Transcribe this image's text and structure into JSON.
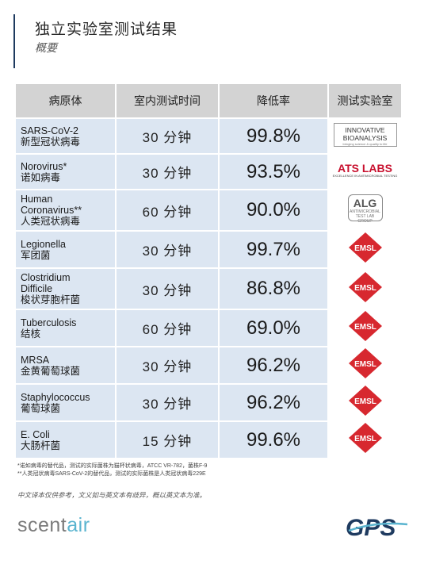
{
  "header": {
    "title": "独立实验室测试结果",
    "subtitle": "概要"
  },
  "table": {
    "headers": [
      "病原体",
      "室内测试时间",
      "降低率",
      "测试实验室"
    ],
    "rows": [
      {
        "pathogen": "SARS-CoV-2\n新型冠状病毒",
        "time": "30 分钟",
        "rate": "99.8%",
        "lab_logo": "innovative-bioanalysis-logo"
      },
      {
        "pathogen": "Norovirus*\n诺如病毒",
        "time": "30 分钟",
        "rate": "93.5%",
        "lab_logo": "ats-labs-logo"
      },
      {
        "pathogen": "Human\nCoronavirus**\n人类冠状病毒",
        "time": "60 分钟",
        "rate": "90.0%",
        "lab_logo": "alg-logo"
      },
      {
        "pathogen": "Legionella\n军团菌",
        "time": "30 分钟",
        "rate": "99.7%",
        "lab_logo": "emsl-logo"
      },
      {
        "pathogen": "Clostridium\nDifficile\n梭状芽胞杆菌",
        "time": "30 分钟",
        "rate": "86.8%",
        "lab_logo": "emsl-logo"
      },
      {
        "pathogen": "Tuberculosis\n结核",
        "time": "60 分钟",
        "rate": "69.0%",
        "lab_logo": "emsl-logo"
      },
      {
        "pathogen": "MRSA\n金黄葡萄球菌",
        "time": "30 分钟",
        "rate": "96.2%",
        "lab_logo": "emsl-logo"
      },
      {
        "pathogen": "Staphylococcus\n葡萄球菌",
        "time": "30 分钟",
        "rate": "96.2%",
        "lab_logo": "emsl-logo"
      },
      {
        "pathogen": "E. Coli\n大肠杆菌",
        "time": "15 分钟",
        "rate": "99.6%",
        "lab_logo": "emsl-logo"
      }
    ]
  },
  "logos": {
    "innovative_bioanalysis": {
      "line1": "INNOVATIVE",
      "line2": "BIOANALYSIS",
      "tagline": "bringing science & quality to life"
    },
    "ats_labs": {
      "name": "ATS LABS",
      "tagline": "EXCELLENCE IN ANTIMICROBIAL TESTING"
    },
    "alg": {
      "name": "ALG",
      "tagline": "ANTIMICROBIAL TEST LAB GROUP"
    },
    "emsl": {
      "name": "EMSL"
    }
  },
  "footnotes": [
    "*诺如病毒的替代品，测试的实际菌株为猫杯状病毒，ATCC VR-782，菌株F-9",
    "**人类冠状病毒SARS-CoV-2的替代品，测试的实际菌株是人类冠状病毒229E"
  ],
  "disclaimer": "中文译本仅供参考，文义如与英文本有歧异，概以英文本为准。",
  "brand": {
    "scent": "scent",
    "air": "air",
    "gps": "GPS"
  },
  "colors": {
    "row_bg": "#dce6f2",
    "header_bg": "#d3d3d3",
    "emsl_red": "#d7282f",
    "scentair_blue": "#5ab4cf",
    "gps_navy": "#1e3a5f"
  }
}
